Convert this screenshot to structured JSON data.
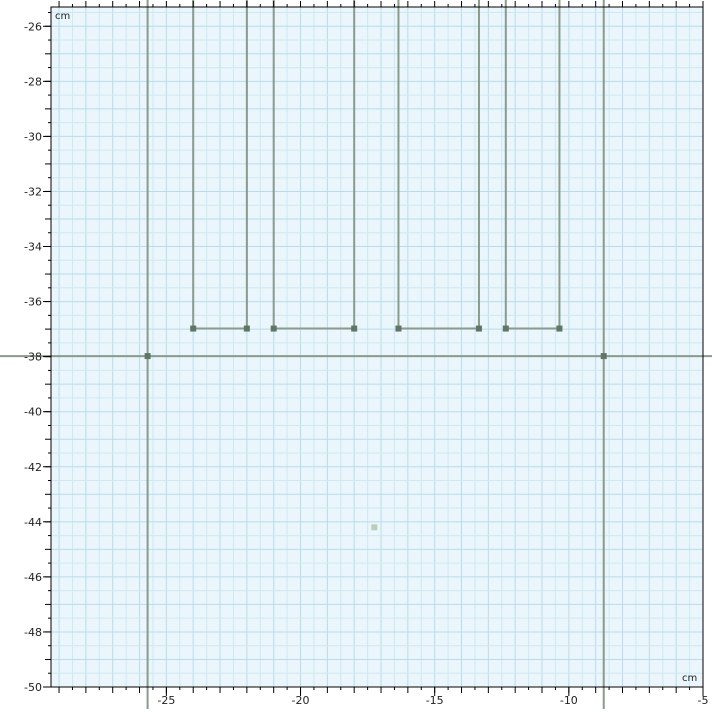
{
  "canvas": {
    "units": "cm",
    "x_range": [
      -29.3,
      -5.0
    ],
    "y_range": [
      -50.0,
      -25.3
    ],
    "x_ticks": [
      "-25",
      "-20",
      "-15",
      "-10",
      "-5"
    ],
    "x_tick_values": [
      -25,
      -20,
      -15,
      -10,
      -5
    ],
    "y_ticks": [
      "-26",
      "-28",
      "-30",
      "-32",
      "-34",
      "-36",
      "-38",
      "-40",
      "-42",
      "-44",
      "-46",
      "-48",
      "-50"
    ],
    "y_tick_values": [
      -26,
      -28,
      -30,
      -32,
      -34,
      -36,
      -38,
      -40,
      -42,
      -44,
      -46,
      -48,
      -50
    ],
    "colors": {
      "background": "#eaf6fb",
      "grid_minor": "#cfe8f2",
      "grid_major": "#b8dceb",
      "geometry_line": "#8a9a8c",
      "vertex": "#5f7565",
      "point": "#b9cfb9",
      "axis_frame": "#000000"
    }
  },
  "geometry": {
    "horizontal_lines": [
      {
        "name": "main-horizontal-boundary",
        "y": -37.98
      }
    ],
    "vertical_lines": [
      {
        "name": "left-vertical-boundary",
        "x": -25.7
      },
      {
        "name": "right-vertical-boundary",
        "x": -8.7
      }
    ],
    "u_shapes": [
      {
        "name": "u-shape-1",
        "x1": -24.0,
        "x2": -22.0,
        "bottom_y": -36.98
      },
      {
        "name": "u-shape-2",
        "x1": -21.0,
        "x2": -18.0,
        "bottom_y": -36.98
      },
      {
        "name": "u-shape-3",
        "x1": -16.35,
        "x2": -13.35,
        "bottom_y": -36.98
      },
      {
        "name": "u-shape-4",
        "x1": -12.35,
        "x2": -10.35,
        "bottom_y": -36.98
      }
    ],
    "vertices": [
      {
        "x": -25.7,
        "y": -37.98
      },
      {
        "x": -8.7,
        "y": -37.98
      }
    ],
    "points": [
      {
        "name": "isolated-point",
        "x": -17.25,
        "y": -44.2
      }
    ]
  }
}
